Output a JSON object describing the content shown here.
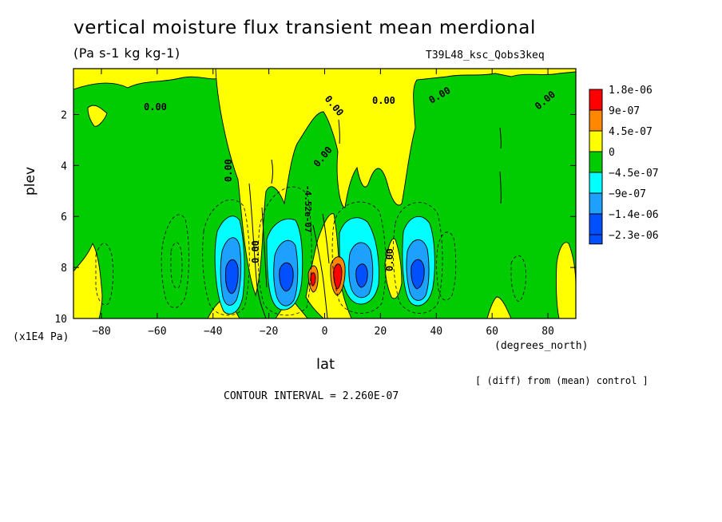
{
  "chart_data": {
    "type": "heatmap",
    "title": "vertical moisture flux transient mean merdional",
    "units": "(Pa s-1 kg kg-1)",
    "experiment": "T39L48_ksc_Qobs3keq",
    "xlabel": "lat",
    "x_units": "(degrees_north)",
    "ylabel": "plev",
    "y_units": "(x1E4 Pa)",
    "xlim": [
      -90,
      90
    ],
    "ylim": [
      10,
      0.2
    ],
    "x_ticks": [
      -80,
      -60,
      -40,
      -20,
      0,
      20,
      40,
      60,
      80
    ],
    "x_tick_labels": [
      "−80",
      "−60",
      "−40",
      "−20",
      "0",
      "20",
      "40",
      "60",
      "80"
    ],
    "y_ticks": [
      2,
      4,
      6,
      8,
      10
    ],
    "y_tick_labels": [
      "2",
      "4",
      "6",
      "8",
      "10"
    ],
    "note": "[ (diff) from (mean) control ]",
    "contour_interval_text": "CONTOUR INTERVAL = 2.260E-07",
    "contour_labels": [
      "0.00",
      "0.00",
      "0.00",
      "0.00",
      "0.00",
      "0.00",
      "0.00",
      "0.00",
      "0.00",
      "-4.52e-07"
    ],
    "colorbar": [
      {
        "label": "1.8e-06",
        "color": "#ff0000"
      },
      {
        "label": "9e-07",
        "color": "#ff8800"
      },
      {
        "label": "4.5e-07",
        "color": "#ffff00"
      },
      {
        "label": "0",
        "color": "#00cc00"
      },
      {
        "label": "−4.5e-07",
        "color": "#00ffff"
      },
      {
        "label": "−9e-07",
        "color": "#1ea0ff"
      },
      {
        "label": "−1.4e-06",
        "color": "#0050ff"
      },
      {
        "label": "−2.3e-06",
        "color": ""
      }
    ],
    "features": [
      {
        "lat": -32,
        "plev": 8.4,
        "value": -2.3e-06
      },
      {
        "lat": -13,
        "plev": 8.4,
        "value": -2.3e-06
      },
      {
        "lat": 13,
        "plev": 8.3,
        "value": -1.4e-06
      },
      {
        "lat": 33,
        "plev": 8.3,
        "value": -2.3e-06
      },
      {
        "lat": -3,
        "plev": 8.4,
        "value": 1.8e-06
      },
      {
        "lat": 5,
        "plev": 8.5,
        "value": 1.8e-06
      }
    ]
  }
}
